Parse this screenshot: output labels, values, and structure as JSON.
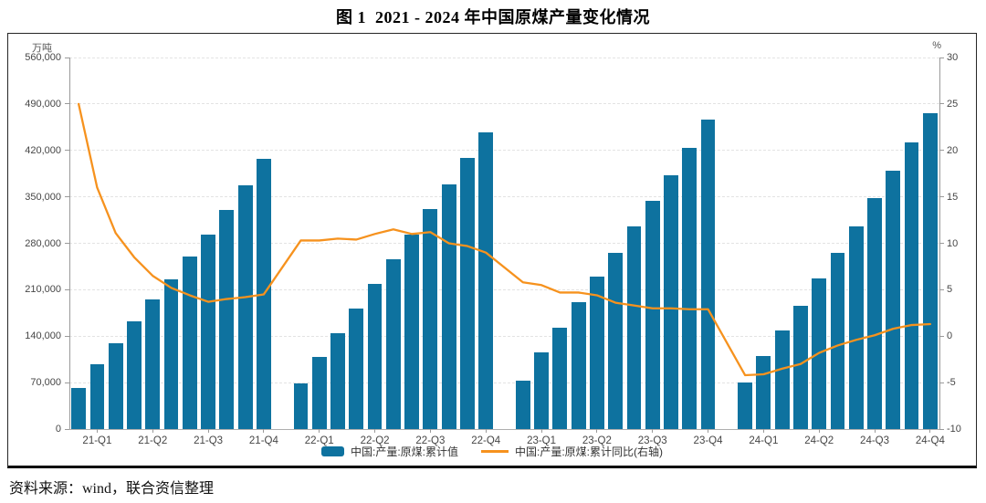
{
  "title": "图 1  2021 - 2024 年中国原煤产量变化情况",
  "source_note": "资料来源：wind，联合资信整理",
  "colors": {
    "bar": "#0e729f",
    "line": "#f6921e",
    "grid": "#e3e3e3",
    "axis": "#9a9a9a"
  },
  "chart_data": {
    "type": "bar+line",
    "title": "图 1 2021-2024 年中国原煤产量变化情况",
    "x_structure": {
      "years": [
        "2021",
        "2022",
        "2023",
        "2024"
      ],
      "bars_per_year": 11,
      "note": "11 monthly cumulative bars per year (Feb–Dec); one empty slot (January) between years",
      "quarter_tick_labels": [
        "21-Q1",
        "21-Q2",
        "21-Q3",
        "21-Q4",
        "22-Q1",
        "22-Q2",
        "22-Q3",
        "22-Q4",
        "23-Q1",
        "23-Q2",
        "23-Q3",
        "23-Q4",
        "24-Q1",
        "24-Q2",
        "24-Q3",
        "24-Q4"
      ]
    },
    "left_axis": {
      "unit": "万吨",
      "min": 0,
      "max": 560000,
      "tick_step": 70000,
      "ticks": [
        0,
        70000,
        140000,
        210000,
        280000,
        350000,
        420000,
        490000,
        560000
      ],
      "tick_labels": [
        "0",
        "70,000",
        "140,000",
        "210,000",
        "280,000",
        "350,000",
        "420,000",
        "490,000",
        "560,000"
      ]
    },
    "right_axis": {
      "unit": "%",
      "min": -10,
      "max": 30,
      "tick_step": 5,
      "ticks": [
        -10,
        -5,
        0,
        5,
        10,
        15,
        20,
        25,
        30
      ],
      "tick_labels": [
        "-10",
        "-5",
        "0",
        "5",
        "10",
        "15",
        "20",
        "25",
        "30"
      ]
    },
    "grid": "horizontal dashed",
    "legend_position": "bottom center",
    "series": [
      {
        "name": "中国:产量:原煤:累计值",
        "type": "bar",
        "axis": "left",
        "color": "#0e729f",
        "values": {
          "2021": [
            61760,
            97056,
            129200,
            162100,
            194900,
            226000,
            260000,
            292600,
            329700,
            367100,
            407100
          ],
          "2022": [
            68700,
            108300,
            144800,
            181800,
            219200,
            256200,
            293300,
            331700,
            368500,
            409300,
            447000
          ],
          "2023": [
            73400,
            115300,
            152700,
            191200,
            230000,
            265600,
            305100,
            344000,
            382900,
            424000,
            465900
          ],
          "2024": [
            70500,
            110600,
            148100,
            186000,
            226600,
            265700,
            304800,
            347600,
            389200,
            432000,
            476000
          ]
        }
      },
      {
        "name": "中国:产量:原煤:累计同比(右轴)",
        "type": "line",
        "axis": "right",
        "color": "#f6921e",
        "values": {
          "2021": [
            25.0,
            16.0,
            11.1,
            8.5,
            6.5,
            5.2,
            4.4,
            3.7,
            4.0,
            4.2,
            4.5
          ],
          "2022": [
            10.3,
            10.3,
            10.5,
            10.4,
            11.0,
            11.5,
            11.0,
            11.2,
            10.0,
            9.7,
            9.0
          ],
          "2023": [
            5.8,
            5.5,
            4.7,
            4.7,
            4.4,
            3.6,
            3.3,
            3.0,
            3.0,
            2.9,
            2.9
          ],
          "2024": [
            -4.2,
            -4.1,
            -3.5,
            -3.0,
            -1.8,
            -1.0,
            -0.4,
            0.1,
            0.8,
            1.2,
            1.3
          ]
        }
      }
    ]
  }
}
